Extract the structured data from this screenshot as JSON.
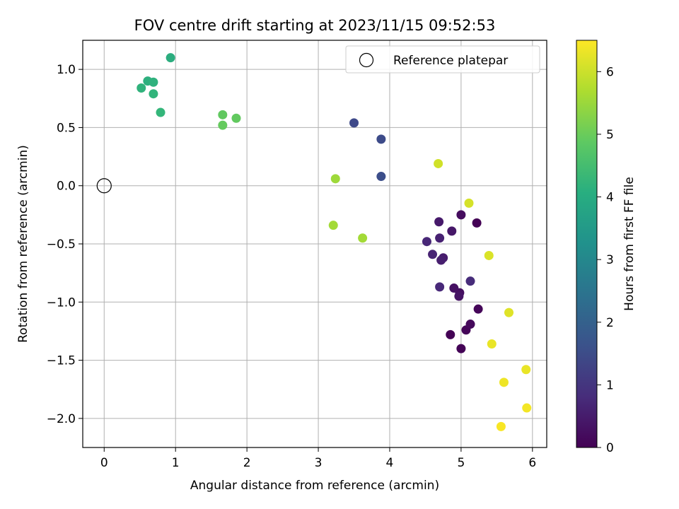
{
  "chart_data": {
    "type": "scatter",
    "title": "FOV centre drift starting at 2023/11/15 09:52:53",
    "xlabel": "Angular distance from reference (arcmin)",
    "ylabel": "Rotation from reference (arcmin)",
    "xlim": [
      -0.3,
      6.2
    ],
    "ylim": [
      -2.25,
      1.25
    ],
    "xticks": [
      0,
      1,
      2,
      3,
      4,
      5,
      6
    ],
    "xtick_labels": [
      "0",
      "1",
      "2",
      "3",
      "4",
      "5",
      "6"
    ],
    "yticks": [
      1.0,
      0.5,
      0.0,
      -0.5,
      -1.0,
      -1.5,
      -2.0
    ],
    "ytick_labels": [
      "1.0",
      "0.5",
      "0.0",
      "−0.5",
      "−1.0",
      "−1.5",
      "−2.0"
    ],
    "grid": true,
    "legend": {
      "position": "top-right",
      "entries": [
        "Reference platepar"
      ]
    },
    "reference_point": {
      "name": "Reference platepar",
      "x": 0,
      "y": 0
    },
    "colorbar": {
      "label": "Hours from first FF file",
      "colormap": "viridis",
      "range": [
        0,
        6.5
      ],
      "ticks": [
        0,
        1,
        2,
        3,
        4,
        5,
        6
      ],
      "tick_labels": [
        "0",
        "1",
        "2",
        "3",
        "4",
        "5",
        "6"
      ]
    },
    "points": [
      {
        "x": 5.22,
        "y": -0.32,
        "c": 0.02
      },
      {
        "x": 4.85,
        "y": -1.28,
        "c": 0.03
      },
      {
        "x": 5.0,
        "y": -1.4,
        "c": 0.05
      },
      {
        "x": 5.07,
        "y": -1.24,
        "c": 0.08
      },
      {
        "x": 5.24,
        "y": -1.06,
        "c": 0.1
      },
      {
        "x": 5.13,
        "y": -1.19,
        "c": 0.15
      },
      {
        "x": 5.0,
        "y": -0.25,
        "c": 0.2
      },
      {
        "x": 4.98,
        "y": -0.92,
        "c": 0.25
      },
      {
        "x": 4.9,
        "y": -0.88,
        "c": 0.3
      },
      {
        "x": 4.97,
        "y": -0.95,
        "c": 0.35
      },
      {
        "x": 4.87,
        "y": -0.39,
        "c": 0.4
      },
      {
        "x": 4.69,
        "y": -0.31,
        "c": 0.45
      },
      {
        "x": 4.75,
        "y": -0.62,
        "c": 0.5
      },
      {
        "x": 4.72,
        "y": -0.64,
        "c": 0.55
      },
      {
        "x": 4.7,
        "y": -0.45,
        "c": 0.6
      },
      {
        "x": 4.6,
        "y": -0.59,
        "c": 0.65
      },
      {
        "x": 4.52,
        "y": -0.48,
        "c": 0.7
      },
      {
        "x": 4.7,
        "y": -0.87,
        "c": 0.75
      },
      {
        "x": 5.13,
        "y": -0.82,
        "c": 0.8
      },
      {
        "x": 3.5,
        "y": 0.54,
        "c": 1.45
      },
      {
        "x": 3.88,
        "y": 0.4,
        "c": 1.5
      },
      {
        "x": 3.88,
        "y": 0.08,
        "c": 1.55
      },
      {
        "x": 0.93,
        "y": 1.1,
        "c": 4.05
      },
      {
        "x": 0.61,
        "y": 0.9,
        "c": 4.1
      },
      {
        "x": 0.69,
        "y": 0.89,
        "c": 4.15
      },
      {
        "x": 0.52,
        "y": 0.84,
        "c": 4.2
      },
      {
        "x": 0.69,
        "y": 0.79,
        "c": 4.25
      },
      {
        "x": 0.79,
        "y": 0.63,
        "c": 4.3
      },
      {
        "x": 1.66,
        "y": 0.61,
        "c": 4.9
      },
      {
        "x": 1.85,
        "y": 0.58,
        "c": 4.92
      },
      {
        "x": 1.66,
        "y": 0.52,
        "c": 4.95
      },
      {
        "x": 3.24,
        "y": 0.06,
        "c": 5.55
      },
      {
        "x": 3.21,
        "y": -0.34,
        "c": 5.6
      },
      {
        "x": 3.62,
        "y": -0.45,
        "c": 5.6
      },
      {
        "x": 4.68,
        "y": 0.19,
        "c": 6.05
      },
      {
        "x": 5.11,
        "y": -0.15,
        "c": 6.1
      },
      {
        "x": 5.39,
        "y": -0.6,
        "c": 6.15
      },
      {
        "x": 5.67,
        "y": -1.09,
        "c": 6.2
      },
      {
        "x": 5.43,
        "y": -1.36,
        "c": 6.3
      },
      {
        "x": 5.91,
        "y": -1.58,
        "c": 6.3
      },
      {
        "x": 5.6,
        "y": -1.69,
        "c": 6.35
      },
      {
        "x": 5.92,
        "y": -1.91,
        "c": 6.4
      },
      {
        "x": 5.56,
        "y": -2.07,
        "c": 6.45
      }
    ]
  }
}
